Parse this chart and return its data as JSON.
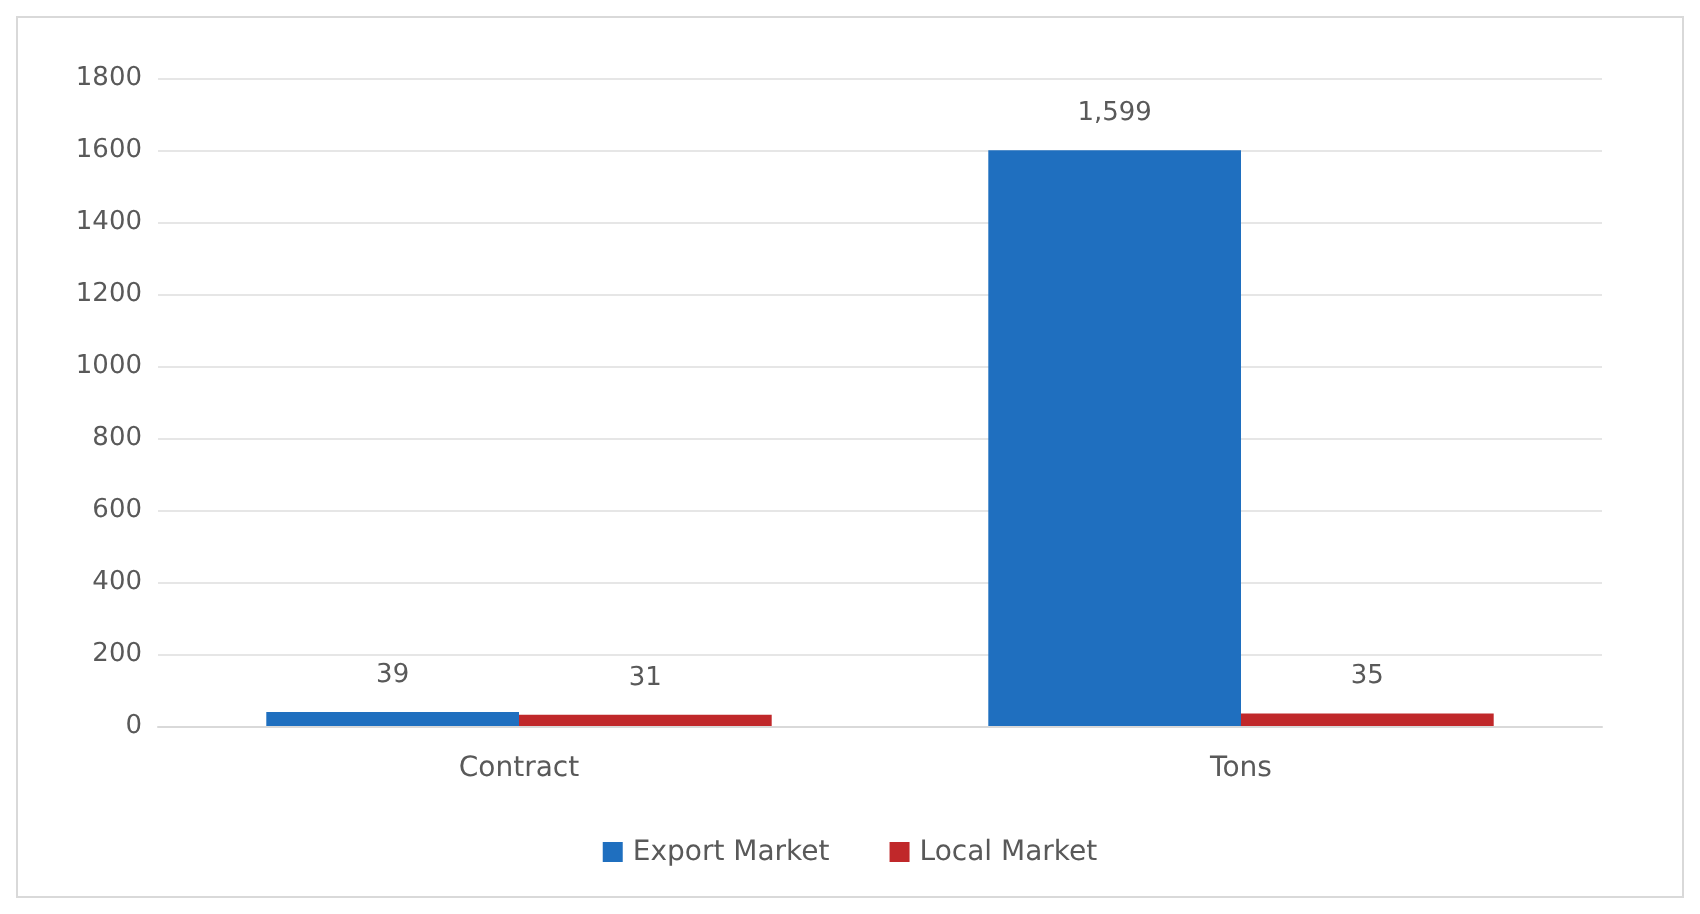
{
  "chart_data": {
    "type": "bar",
    "categories": [
      "Contract",
      "Tons"
    ],
    "series": [
      {
        "name": "Export Market",
        "color": "#1f6fbf",
        "values": [
          39,
          1599
        ],
        "value_labels": [
          "39",
          "1,599"
        ]
      },
      {
        "name": "Local Market",
        "color": "#c0282a",
        "values": [
          31,
          35
        ],
        "value_labels": [
          "31",
          "35"
        ]
      }
    ],
    "ylim": [
      0,
      1800
    ],
    "yticks": [
      0,
      200,
      400,
      600,
      800,
      1000,
      1200,
      1400,
      1600,
      1800
    ],
    "grid": "y",
    "legend": "bottom"
  }
}
